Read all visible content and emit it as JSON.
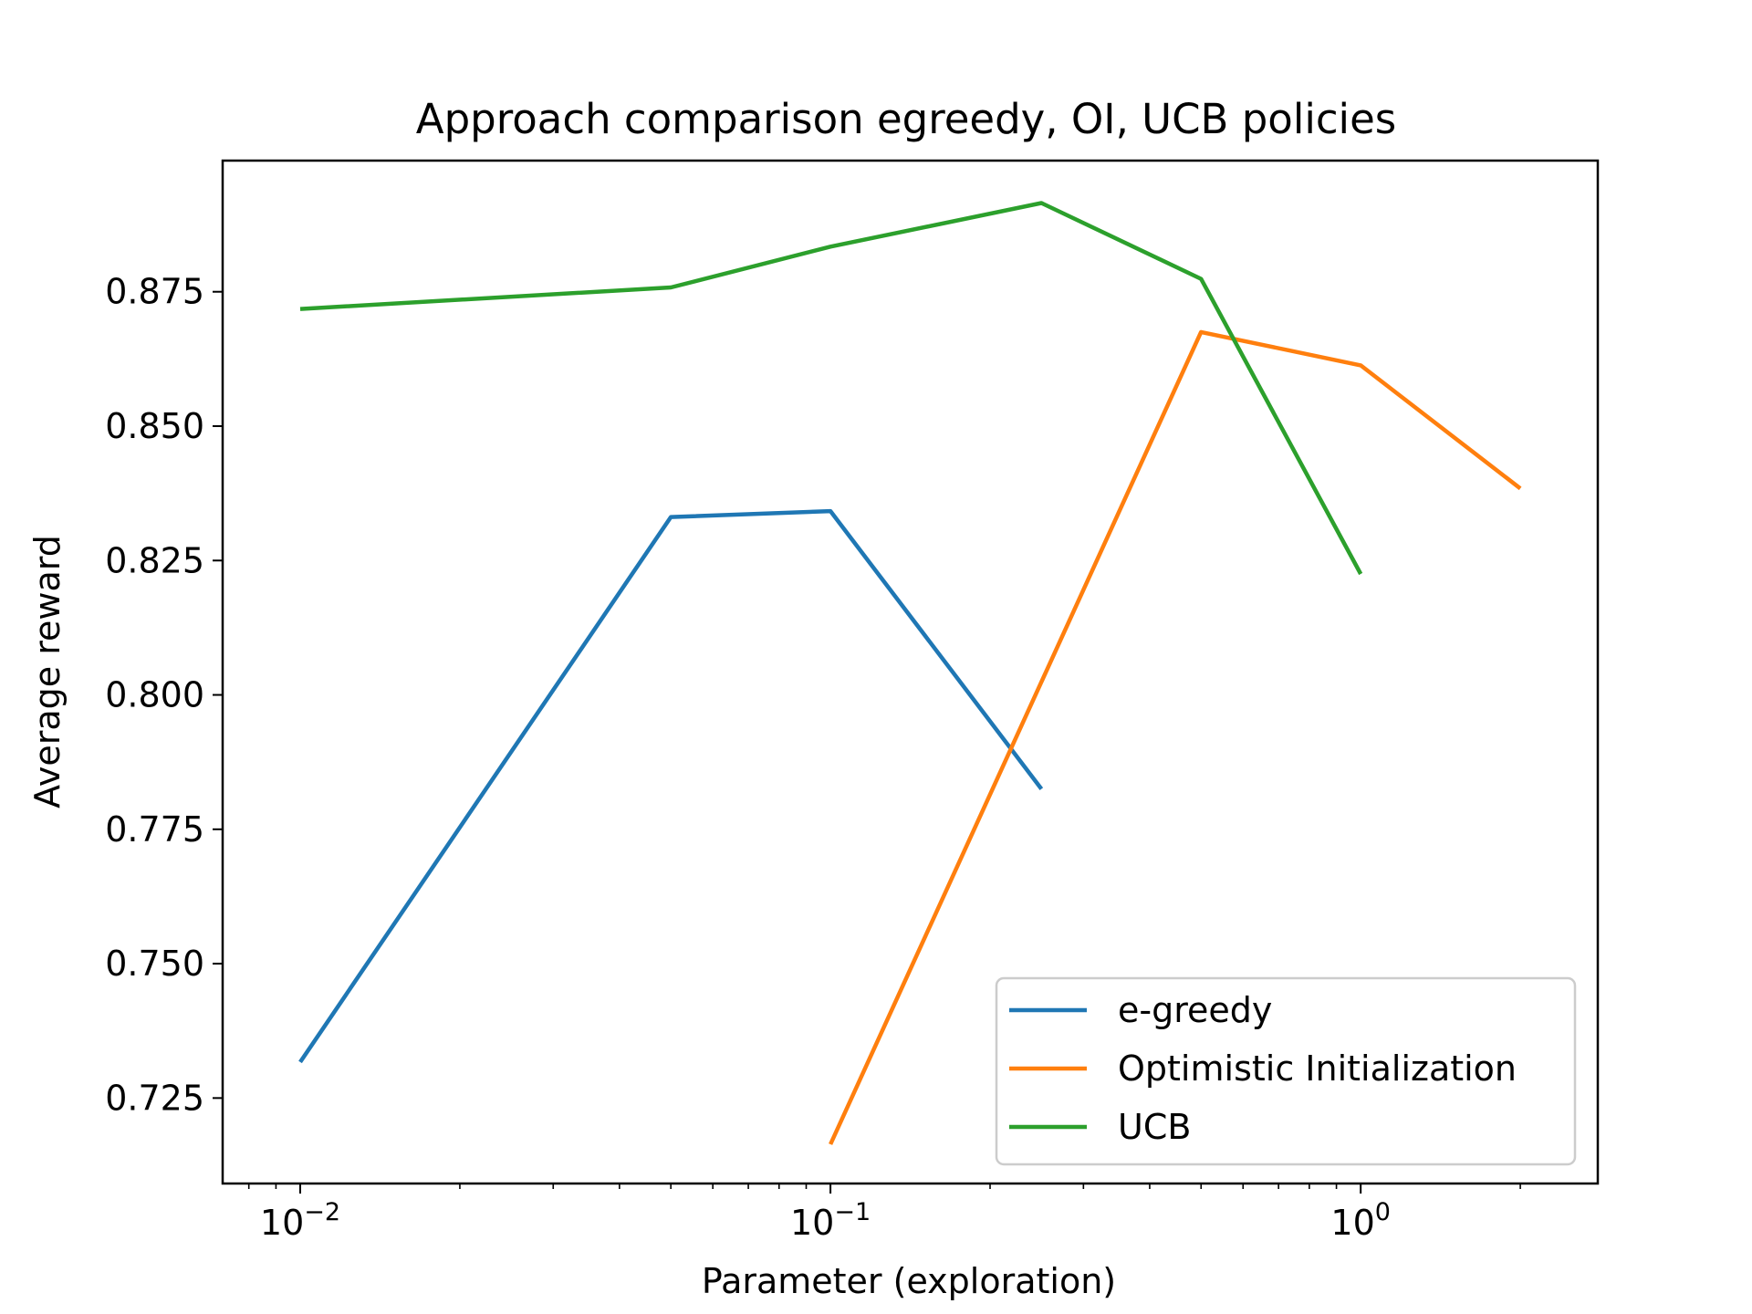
{
  "chart_data": {
    "type": "line",
    "title": "Approach comparison egreedy, OI, UCB policies",
    "xlabel": "Parameter (exploration)",
    "ylabel": "Average reward",
    "xscale": "log",
    "xlim": [
      0.00714,
      2.8
    ],
    "ylim": [
      0.7091,
      0.8994
    ],
    "grid": false,
    "legend_position": "bottom-right",
    "x_major_ticks": [
      {
        "value": 0.01,
        "base": "10",
        "exponent": "−2"
      },
      {
        "value": 0.1,
        "base": "10",
        "exponent": "−1"
      },
      {
        "value": 1,
        "base": "10",
        "exponent": "0"
      }
    ],
    "y_ticks": [
      "0.725",
      "0.750",
      "0.775",
      "0.800",
      "0.825",
      "0.850",
      "0.875"
    ],
    "series": [
      {
        "name": "e-greedy",
        "color": "#1f77b4",
        "x": [
          0.01,
          0.05,
          0.1,
          0.25
        ],
        "y": [
          0.7317,
          0.8331,
          0.8342,
          0.7825
        ]
      },
      {
        "name": "Optimistic Initialization",
        "color": "#ff7f0e",
        "x": [
          0.1,
          0.5,
          1,
          2
        ],
        "y": [
          0.7164,
          0.8675,
          0.8613,
          0.8384
        ]
      },
      {
        "name": "UCB",
        "color": "#2ca02c",
        "x": [
          0.01,
          0.05,
          0.1,
          0.25,
          0.5,
          1
        ],
        "y": [
          0.8718,
          0.8758,
          0.8834,
          0.8915,
          0.8774,
          0.8225
        ]
      }
    ]
  }
}
